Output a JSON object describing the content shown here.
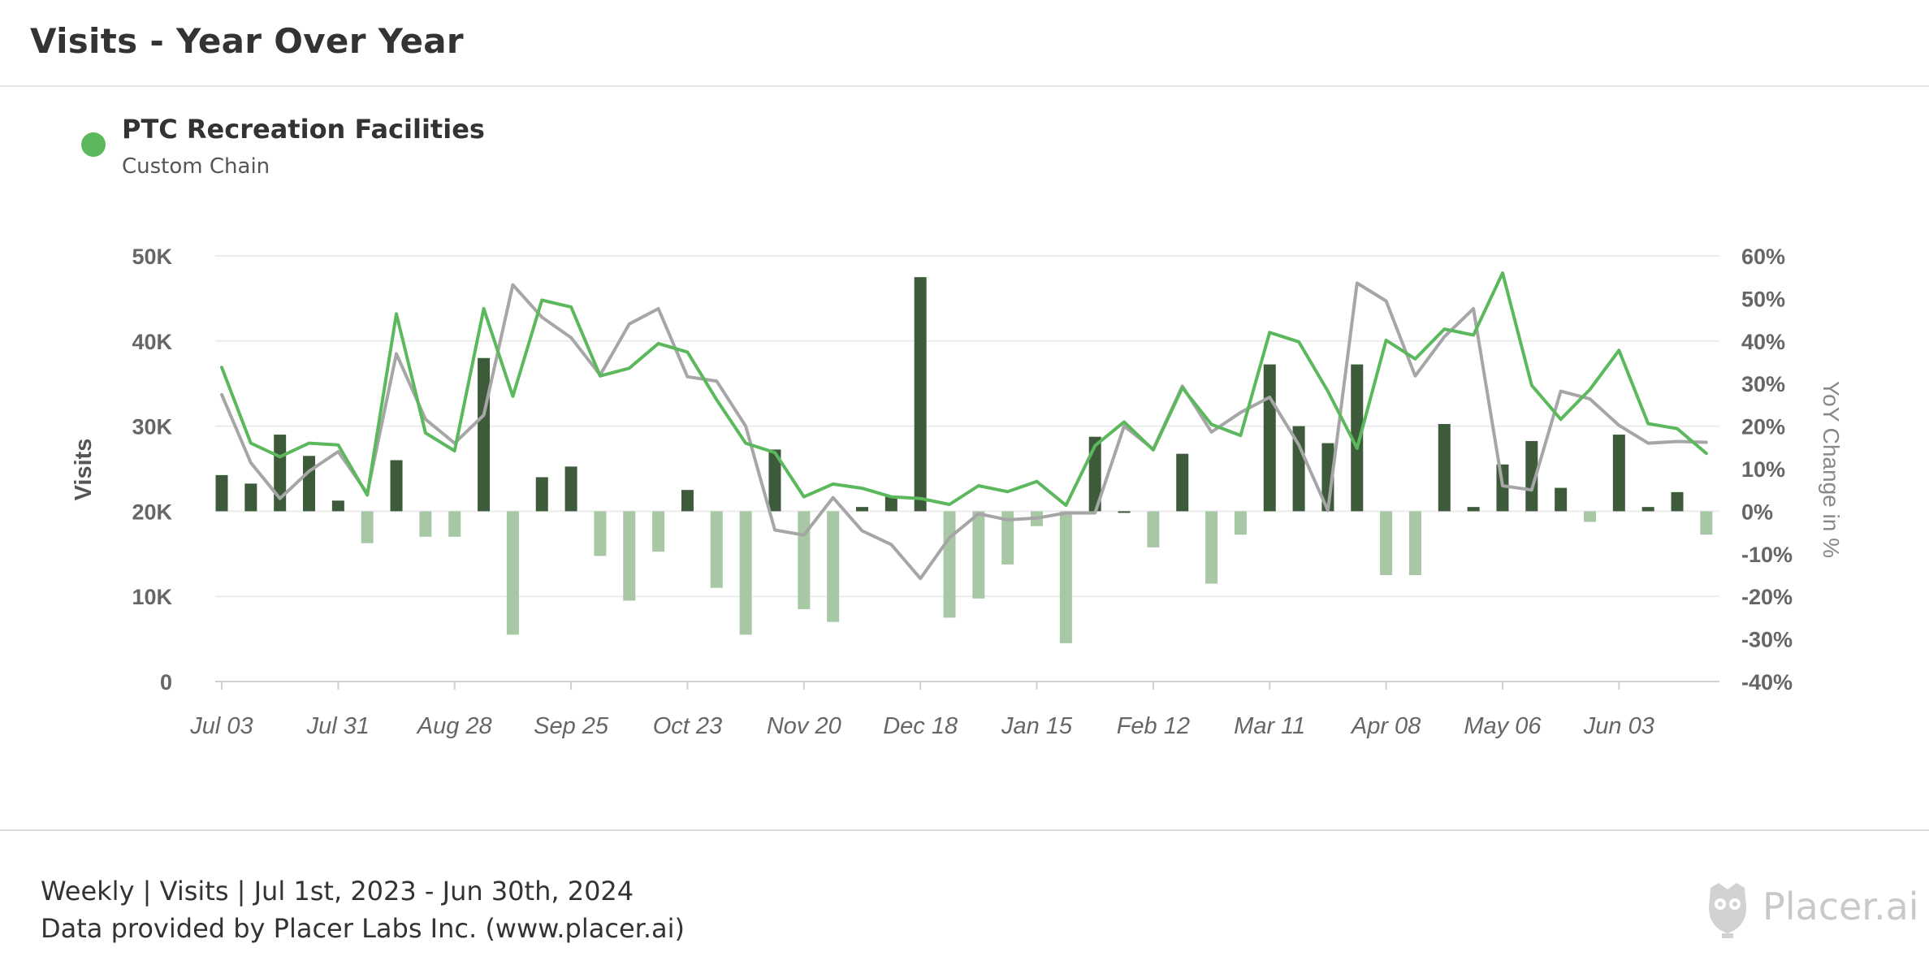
{
  "page": {
    "title": "Visits - Year Over Year"
  },
  "legend": {
    "name": "PTC Recreation Facilities",
    "subtitle": "Custom Chain",
    "color": "#5cb85c"
  },
  "footer": {
    "line1": "Weekly | Visits | Jul 1st, 2023 - Jun 30th, 2024",
    "line2": "Data provided by Placer Labs Inc. (www.placer.ai)",
    "brand": "Placer.ai",
    "brand_icon": "owl-logo-icon"
  },
  "chart_data": {
    "type": "line",
    "ylabel": "Visits",
    "y2label": "YoY Change in %",
    "ylim": [
      0,
      50000
    ],
    "y2lim": [
      -40,
      60
    ],
    "y_ticks": [
      "0",
      "10K",
      "20K",
      "30K",
      "40K",
      "50K"
    ],
    "y2_ticks": [
      "-40%",
      "-30%",
      "-20%",
      "-10%",
      "0%",
      "10%",
      "20%",
      "30%",
      "40%",
      "50%",
      "60%"
    ],
    "x_ticks": [
      {
        "label": "Jul 03",
        "index": 0
      },
      {
        "label": "Jul 31",
        "index": 4
      },
      {
        "label": "Aug 28",
        "index": 8
      },
      {
        "label": "Sep 25",
        "index": 12
      },
      {
        "label": "Oct 23",
        "index": 16
      },
      {
        "label": "Nov 20",
        "index": 20
      },
      {
        "label": "Dec 18",
        "index": 24
      },
      {
        "label": "Jan 15",
        "index": 28
      },
      {
        "label": "Feb 12",
        "index": 32
      },
      {
        "label": "Mar 11",
        "index": 36
      },
      {
        "label": "Apr 08",
        "index": 40
      },
      {
        "label": "May 06",
        "index": 44
      },
      {
        "label": "Jun 03",
        "index": 48
      }
    ],
    "grid": true,
    "legend_position": "top-left",
    "series": [
      {
        "name": "PTC Recreation Facilities",
        "kind": "line",
        "axis": "left",
        "color": "#5cb85c",
        "values": [
          36900,
          28000,
          26400,
          28000,
          27800,
          21900,
          43200,
          29200,
          27100,
          43800,
          33500,
          44800,
          44000,
          35900,
          36800,
          39700,
          38700,
          33100,
          28000,
          26900,
          21700,
          23200,
          22700,
          21700,
          21500,
          20800,
          23000,
          22300,
          23500,
          20700,
          27700,
          30500,
          27200,
          34500,
          30200,
          28900,
          41000,
          39900,
          34100,
          27400,
          40100,
          37900,
          41400,
          40700,
          48000,
          34800,
          30800,
          34300,
          38900,
          30300,
          29700,
          26800
        ],
        "highlighted_points": []
      },
      {
        "name": "",
        "kind": "line",
        "axis": "left",
        "color": "#a6a6a6",
        "values": [
          33700,
          25700,
          21500,
          24700,
          27000,
          22100,
          38500,
          30800,
          28000,
          31300,
          46600,
          42800,
          40400,
          36000,
          42000,
          43800,
          35800,
          35300,
          30000,
          17800,
          17200,
          21600,
          17700,
          16100,
          12100,
          16900,
          19700,
          19000,
          19200,
          19800,
          19800,
          30000,
          27300,
          34700,
          29300,
          31600,
          33400,
          27800,
          20100,
          46800,
          44700,
          35900,
          40500,
          43800,
          23000,
          22500,
          34100,
          33200,
          30100,
          28000,
          28200,
          28100
        ],
        "highlighted_points": []
      },
      {
        "name": "",
        "kind": "bar",
        "axis": "right",
        "color_positive": "#3d5a3a",
        "color_negative": "#a8c8a5",
        "values": [
          8.5,
          6.5,
          18,
          13,
          2.5,
          -7.5,
          12,
          -6,
          -6,
          36,
          -29,
          8,
          10.5,
          -10.5,
          -21,
          -9.5,
          5,
          -18,
          -29,
          14.5,
          -23,
          -26,
          1,
          3.5,
          55,
          -25,
          -20.5,
          -12.5,
          -3.5,
          -31,
          17.5,
          0,
          -8.5,
          13.5,
          -17,
          -5.5,
          34.5,
          20,
          16,
          34.5,
          -15,
          -15,
          20.5,
          1,
          11,
          16.5,
          5.5,
          -2.5,
          18,
          1,
          4.5,
          -5.5
        ]
      }
    ]
  }
}
